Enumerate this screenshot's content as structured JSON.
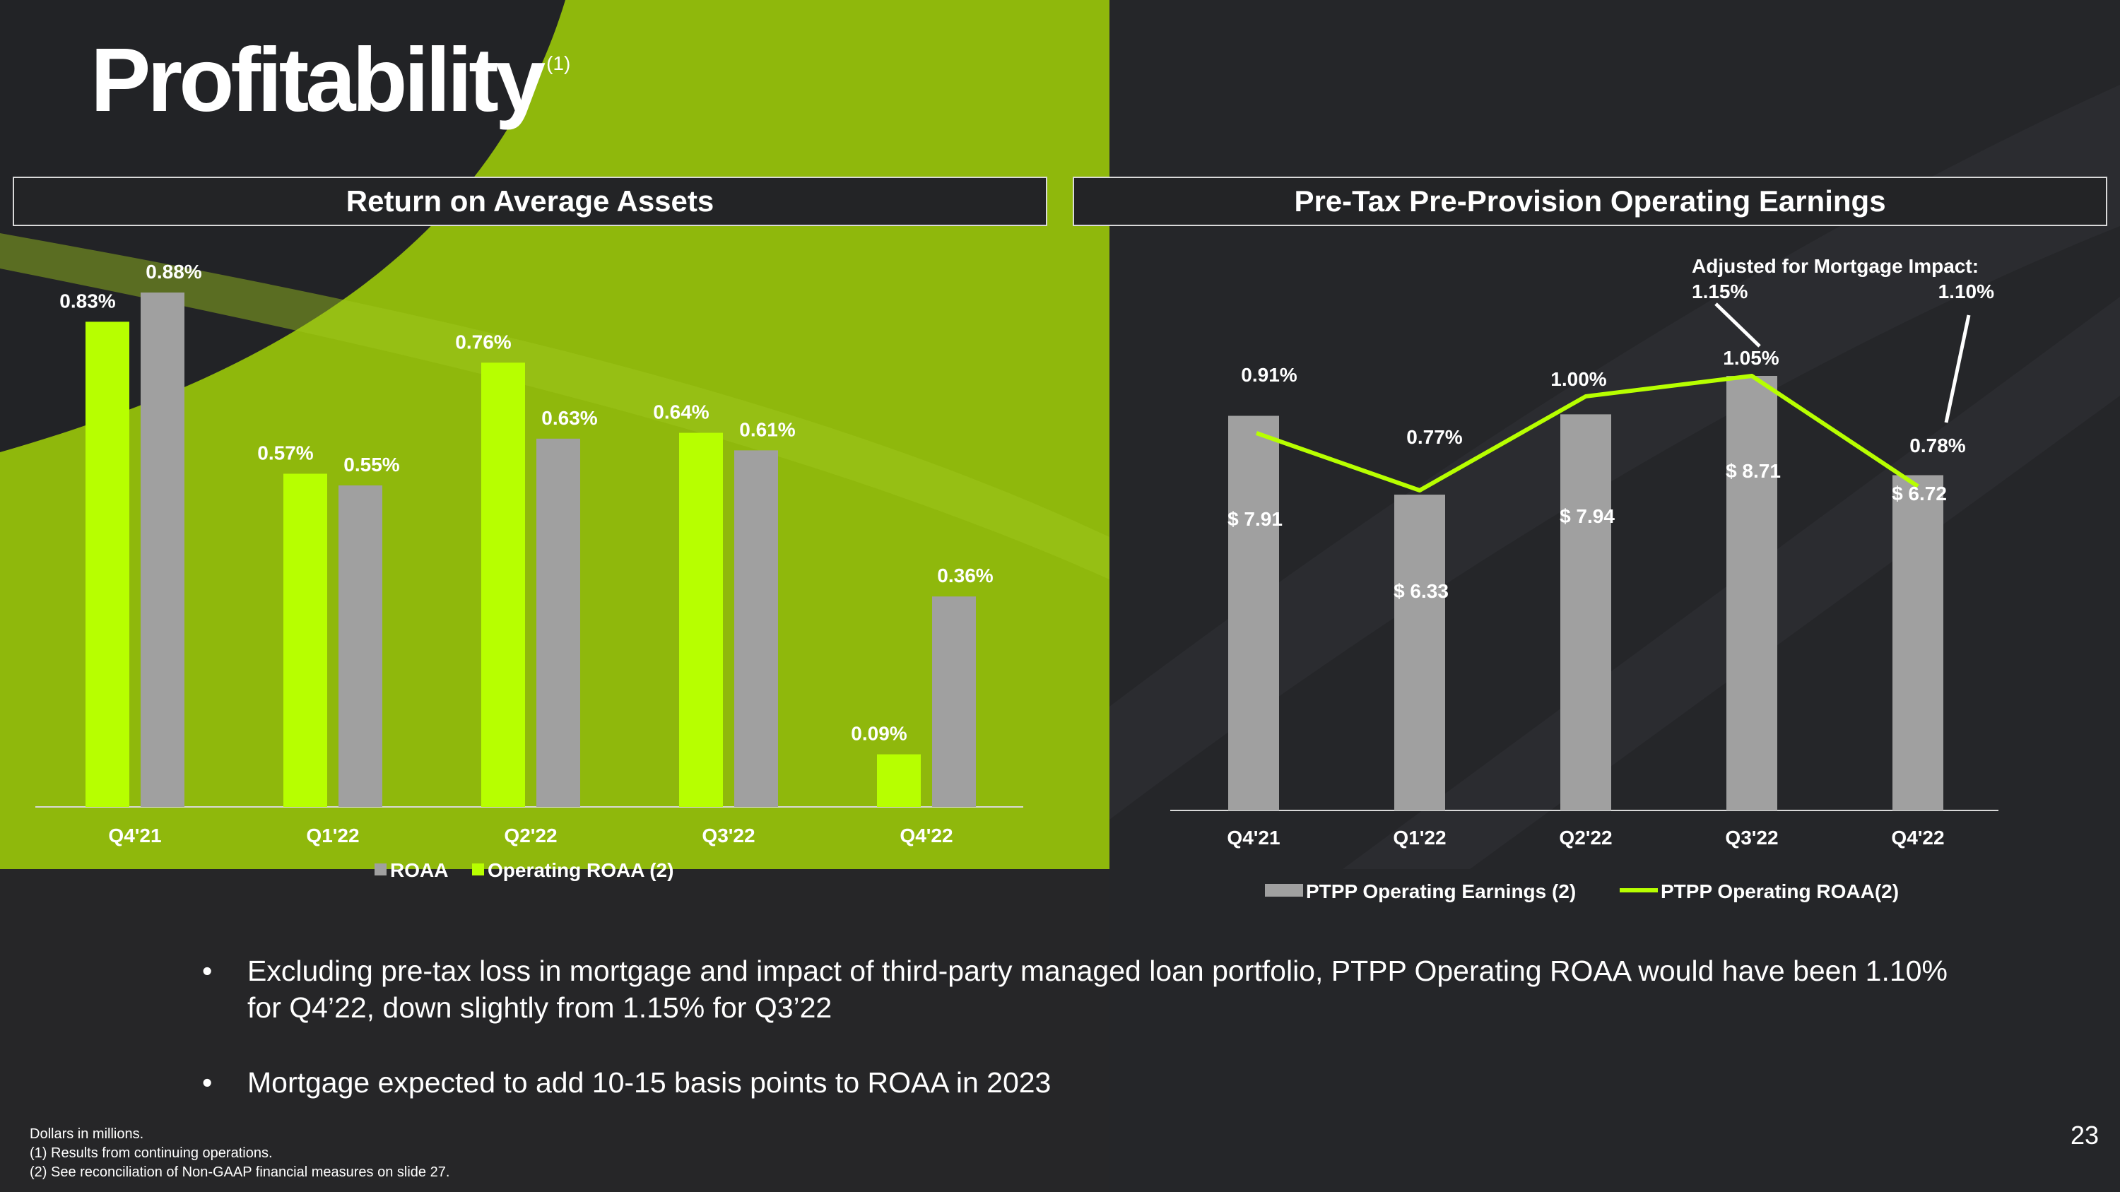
{
  "slide": {
    "title": "Profitability",
    "title_superscript": "(1)",
    "page_number": "23",
    "colors": {
      "accent": "#b7ff00",
      "bar_gray": "#a0a0a0",
      "background": "#222326"
    }
  },
  "panels": {
    "left_title": "Return on Average Assets",
    "right_title": "Pre-Tax Pre-Provision Operating Earnings"
  },
  "chart_data": [
    {
      "type": "bar",
      "title": "Return on Average Assets",
      "categories": [
        "Q4'21",
        "Q1'22",
        "Q2'22",
        "Q3'22",
        "Q4'22"
      ],
      "series": [
        {
          "name": "ROAA",
          "color": "#a0a0a0",
          "values": [
            0.88,
            0.55,
            0.63,
            0.61,
            0.36
          ],
          "labels": [
            "0.88%",
            "0.55%",
            "0.63%",
            "0.61%",
            "0.36%"
          ]
        },
        {
          "name": "Operating ROAA (2)",
          "color": "#b7ff00",
          "values": [
            0.83,
            0.57,
            0.76,
            0.64,
            0.09
          ],
          "labels": [
            "0.83%",
            "0.57%",
            "0.76%",
            "0.64%",
            "0.09%"
          ]
        }
      ],
      "ylim": [
        0,
        0.9
      ],
      "legend": "bottom"
    },
    {
      "type": "bar+line",
      "title": "Pre-Tax Pre-Provision Operating Earnings",
      "categories": [
        "Q4'21",
        "Q1'22",
        "Q2'22",
        "Q3'22",
        "Q4'22"
      ],
      "bars": {
        "name": "PTPP Operating Earnings (2)",
        "color": "#a0a0a0",
        "values": [
          7.91,
          6.33,
          7.94,
          8.71,
          6.72
        ],
        "labels": [
          "$ 7.91",
          "$ 6.33",
          "$ 7.94",
          "$ 8.71",
          "$ 6.72"
        ]
      },
      "line": {
        "name": "PTPP Operating ROAA(2)",
        "color": "#b7ff00",
        "values": [
          0.91,
          0.77,
          1.0,
          1.05,
          0.78
        ],
        "labels": [
          "0.91%",
          "0.77%",
          "1.00%",
          "1.05%",
          "0.78%"
        ]
      },
      "annotation": {
        "heading": "Adjusted for Mortgage Impact:",
        "left_value": "1.15%",
        "right_value": "1.10%"
      },
      "legend": "bottom"
    }
  ],
  "bullets": [
    "Excluding pre-tax loss in mortgage and impact of third-party managed loan portfolio, PTPP Operating ROAA would have been 1.10% for Q4’22, down slightly from 1.15% for Q3’22",
    "Mortgage expected to add 10-15 basis points to ROAA in 2023"
  ],
  "bullet_symbol": "•",
  "footnotes": [
    "Dollars in millions.",
    "(1) Results from continuing operations.",
    "(2) See reconciliation of Non-GAAP financial measures on slide 27."
  ]
}
